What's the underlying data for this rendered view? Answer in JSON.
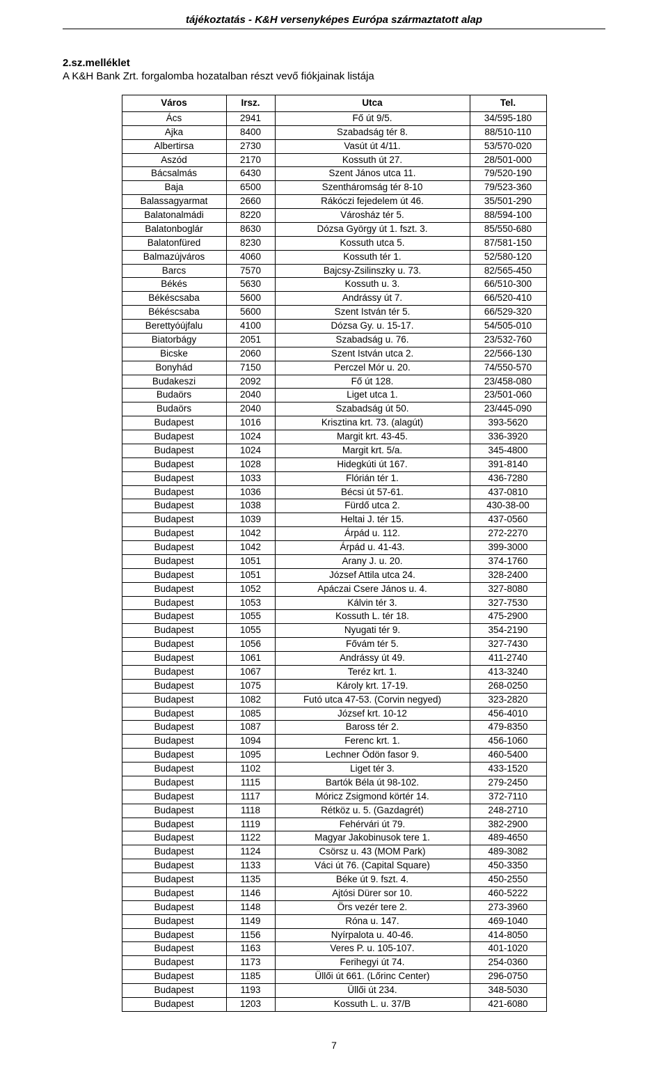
{
  "header": "tájékoztatás -  K&H versenyképes Európa származtatott alap",
  "section_heading": "2.sz.melléklet",
  "subtitle": "A K&H Bank Zrt. forgalomba hozatalban részt vevő fiókjainak listája",
  "page_number": "7",
  "table": {
    "columns": [
      "Város",
      "Irsz.",
      "Utca",
      "Tel."
    ],
    "rows": [
      [
        "Ács",
        "2941",
        "Fő út 9/5.",
        "34/595-180"
      ],
      [
        "Ajka",
        "8400",
        "Szabadság tér 8.",
        "88/510-110"
      ],
      [
        "Albertirsa",
        "2730",
        "Vasút út 4/11.",
        "53/570-020"
      ],
      [
        "Aszód",
        "2170",
        "Kossuth út 27.",
        "28/501-000"
      ],
      [
        "Bácsalmás",
        "6430",
        "Szent János utca 11.",
        "79/520-190"
      ],
      [
        "Baja",
        "6500",
        "Szentháromság tér 8-10",
        "79/523-360"
      ],
      [
        "Balassagyarmat",
        "2660",
        "Rákóczi fejedelem út 46.",
        "35/501-290"
      ],
      [
        "Balatonalmádi",
        "8220",
        "Városház tér 5.",
        "88/594-100"
      ],
      [
        "Balatonboglár",
        "8630",
        "Dózsa György út 1. fszt. 3.",
        "85/550-680"
      ],
      [
        "Balatonfüred",
        "8230",
        "Kossuth utca 5.",
        "87/581-150"
      ],
      [
        "Balmazújváros",
        "4060",
        "Kossuth tér 1.",
        "52/580-120"
      ],
      [
        "Barcs",
        "7570",
        "Bajcsy-Zsilinszky u. 73.",
        "82/565-450"
      ],
      [
        "Békés",
        "5630",
        "Kossuth u. 3.",
        "66/510-300"
      ],
      [
        "Békéscsaba",
        "5600",
        "Andrássy út 7.",
        "66/520-410"
      ],
      [
        "Békéscsaba",
        "5600",
        "Szent István tér 5.",
        "66/529-320"
      ],
      [
        "Berettyóújfalu",
        "4100",
        "Dózsa Gy. u. 15-17.",
        "54/505-010"
      ],
      [
        "Biatorbágy",
        "2051",
        "Szabadság u. 76.",
        "23/532-760"
      ],
      [
        "Bicske",
        "2060",
        "Szent István utca 2.",
        "22/566-130"
      ],
      [
        "Bonyhád",
        "7150",
        "Perczel Mór u. 20.",
        "74/550-570"
      ],
      [
        "Budakeszi",
        "2092",
        "Fő út 128.",
        "23/458-080"
      ],
      [
        "Budaörs",
        "2040",
        "Liget utca 1.",
        "23/501-060"
      ],
      [
        "Budaörs",
        "2040",
        "Szabadság út 50.",
        "23/445-090"
      ],
      [
        "Budapest",
        "1016",
        "Krisztina krt. 73. (alagút)",
        "393-5620"
      ],
      [
        "Budapest",
        "1024",
        "Margit krt. 43-45.",
        "336-3920"
      ],
      [
        "Budapest",
        "1024",
        "Margit krt. 5/a.",
        "345-4800"
      ],
      [
        "Budapest",
        "1028",
        "Hidegkúti út 167.",
        "391-8140"
      ],
      [
        "Budapest",
        "1033",
        "Flórián tér 1.",
        "436-7280"
      ],
      [
        "Budapest",
        "1036",
        "Bécsi út 57-61.",
        "437-0810"
      ],
      [
        "Budapest",
        "1038",
        "Fürdő utca 2.",
        "430-38-00"
      ],
      [
        "Budapest",
        "1039",
        "Heltai J. tér 15.",
        "437-0560"
      ],
      [
        "Budapest",
        "1042",
        "Árpád u. 112.",
        "272-2270"
      ],
      [
        "Budapest",
        "1042",
        "Árpád u. 41-43.",
        "399-3000"
      ],
      [
        "Budapest",
        "1051",
        "Arany J. u. 20.",
        "374-1760"
      ],
      [
        "Budapest",
        "1051",
        "József Attila utca 24.",
        "328-2400"
      ],
      [
        "Budapest",
        "1052",
        "Apáczai Csere János u. 4.",
        "327-8080"
      ],
      [
        "Budapest",
        "1053",
        "Kálvin tér 3.",
        "327-7530"
      ],
      [
        "Budapest",
        "1055",
        "Kossuth L. tér 18.",
        "475-2900"
      ],
      [
        "Budapest",
        "1055",
        "Nyugati tér 9.",
        "354-2190"
      ],
      [
        "Budapest",
        "1056",
        "Fővám tér 5.",
        "327-7430"
      ],
      [
        "Budapest",
        "1061",
        "Andrássy út 49.",
        "411-2740"
      ],
      [
        "Budapest",
        "1067",
        "Teréz krt. 1.",
        "413-3240"
      ],
      [
        "Budapest",
        "1075",
        "Károly krt. 17-19.",
        "268-0250"
      ],
      [
        "Budapest",
        "1082",
        "Futó utca 47-53. (Corvin negyed)",
        "323-2820"
      ],
      [
        "Budapest",
        "1085",
        "József krt. 10-12",
        "456-4010"
      ],
      [
        "Budapest",
        "1087",
        "Baross tér 2.",
        "479-8350"
      ],
      [
        "Budapest",
        "1094",
        "Ferenc krt. 1.",
        "456-1060"
      ],
      [
        "Budapest",
        "1095",
        "Lechner Ödön fasor 9.",
        "460-5400"
      ],
      [
        "Budapest",
        "1102",
        "Liget tér 3.",
        "433-1520"
      ],
      [
        "Budapest",
        "1115",
        "Bartók Béla út 98-102.",
        "279-2450"
      ],
      [
        "Budapest",
        "1117",
        "Móricz Zsigmond körtér 14.",
        "372-7110"
      ],
      [
        "Budapest",
        "1118",
        "Rétköz u. 5. (Gazdagrét)",
        "248-2710"
      ],
      [
        "Budapest",
        "1119",
        "Fehérvári út 79.",
        "382-2900"
      ],
      [
        "Budapest",
        "1122",
        "Magyar Jakobinusok tere 1.",
        "489-4650"
      ],
      [
        "Budapest",
        "1124",
        "Csörsz u. 43 (MOM Park)",
        "489-3082"
      ],
      [
        "Budapest",
        "1133",
        "Váci út 76. (Capital Square)",
        "450-3350"
      ],
      [
        "Budapest",
        "1135",
        "Béke út 9. fszt. 4.",
        "450-2550"
      ],
      [
        "Budapest",
        "1146",
        "Ajtósi Dürer sor 10.",
        "460-5222"
      ],
      [
        "Budapest",
        "1148",
        "Örs vezér tere 2.",
        "273-3960"
      ],
      [
        "Budapest",
        "1149",
        "Róna u. 147.",
        "469-1040"
      ],
      [
        "Budapest",
        "1156",
        "Nyírpalota u. 40-46.",
        "414-8050"
      ],
      [
        "Budapest",
        "1163",
        "Veres P. u. 105-107.",
        "401-1020"
      ],
      [
        "Budapest",
        "1173",
        "Ferihegyi út 74.",
        "254-0360"
      ],
      [
        "Budapest",
        "1185",
        "Üllői út 661. (Lőrinc Center)",
        "296-0750"
      ],
      [
        "Budapest",
        "1193",
        "Üllői út 234.",
        "348-5030"
      ],
      [
        "Budapest",
        "1203",
        "Kossuth L. u. 37/B",
        "421-6080"
      ]
    ]
  }
}
